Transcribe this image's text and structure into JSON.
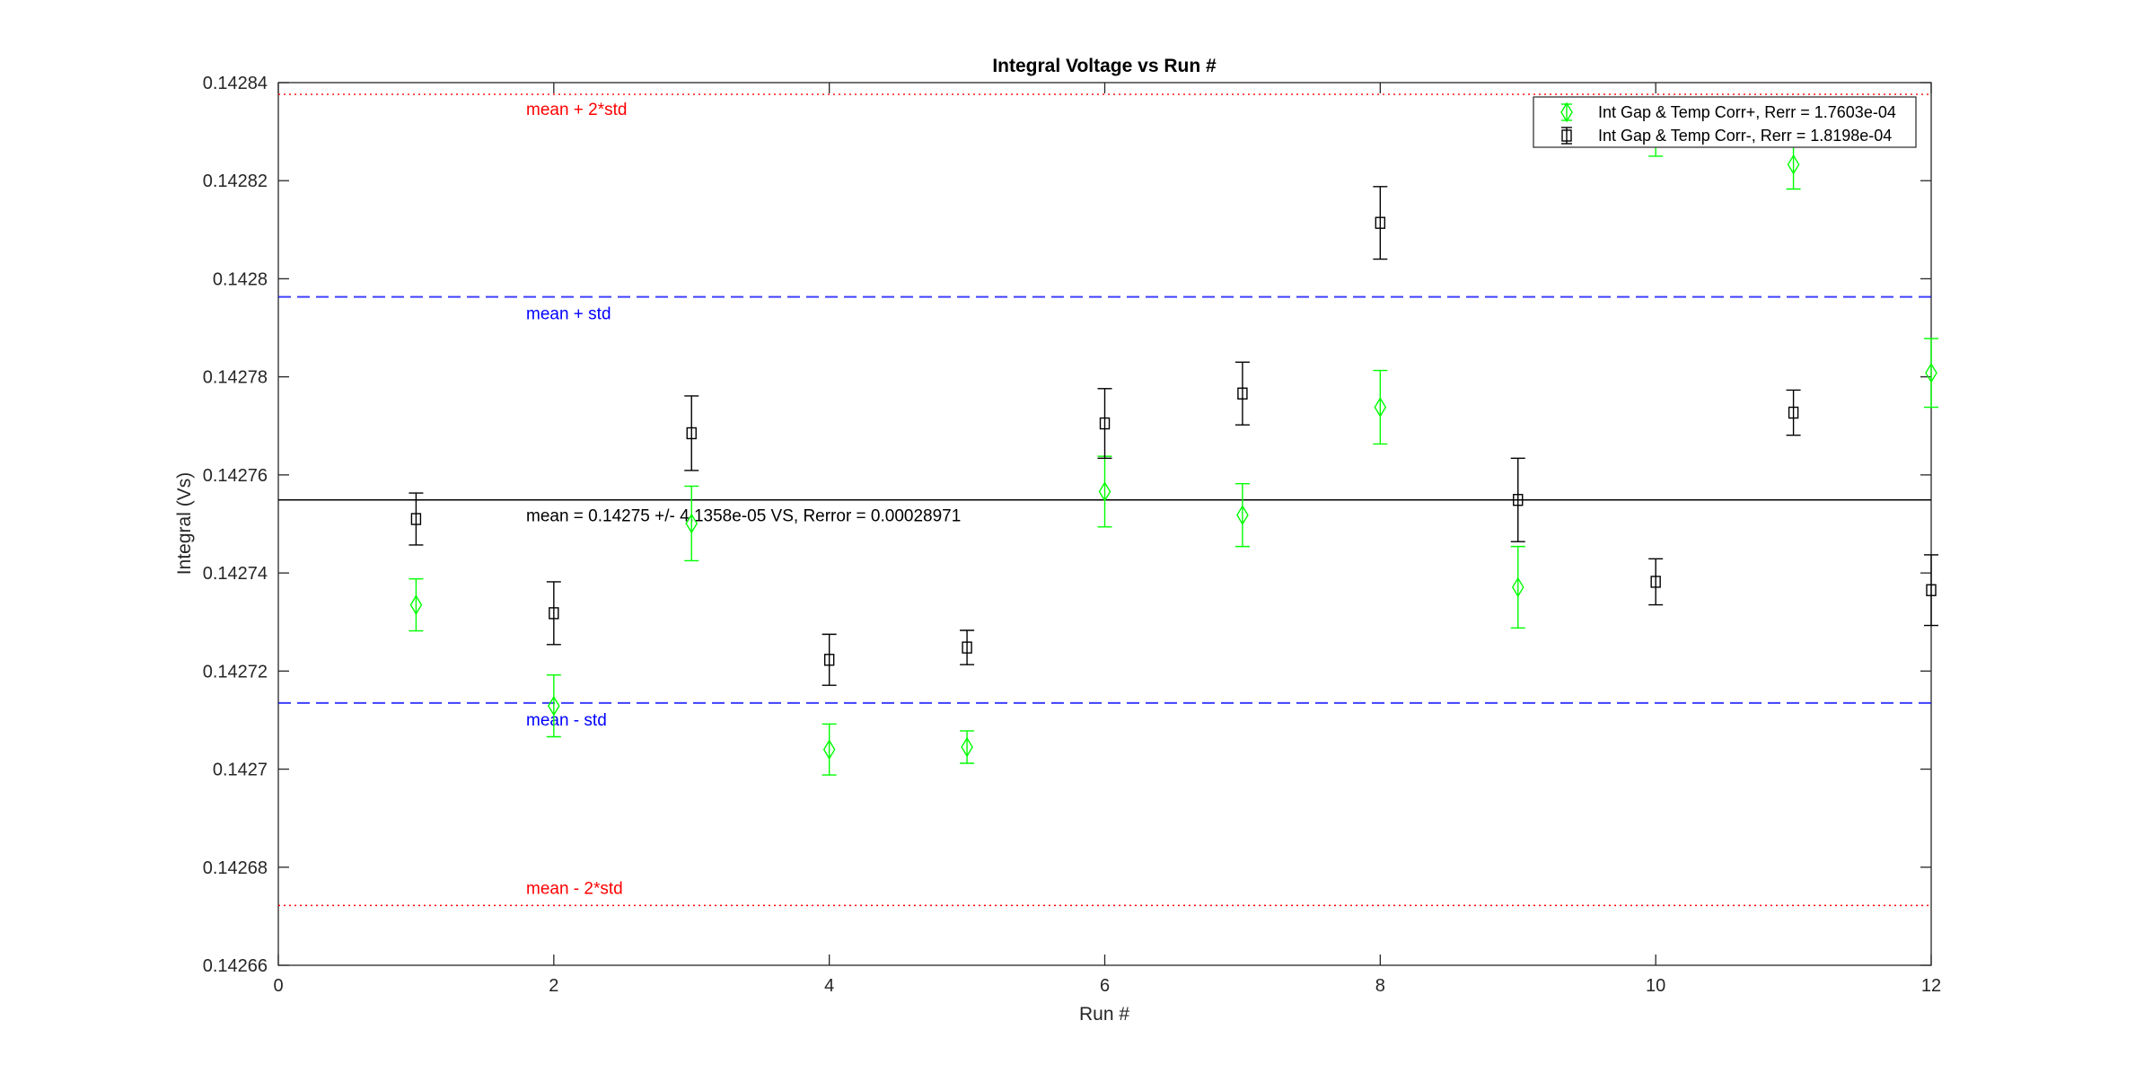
{
  "chart_data": {
    "type": "scatter",
    "title": "Integral Voltage vs Run #",
    "xlabel": "Run #",
    "ylabel": "Integral (Vs)",
    "xlim": [
      0,
      12
    ],
    "ylim": [
      0.14266,
      0.14284
    ],
    "xticks": [
      "0",
      "2",
      "4",
      "6",
      "8",
      "10",
      "12"
    ],
    "yticks": [
      "0.14266",
      "0.14268",
      "0.1427",
      "0.14272",
      "0.14274",
      "0.14276",
      "0.14278",
      "0.1428",
      "0.14282",
      "0.14284"
    ],
    "grid": false,
    "legend_position": "top-right",
    "x": [
      1,
      2,
      3,
      4,
      5,
      6,
      7,
      8,
      9,
      10,
      11,
      12
    ],
    "series": [
      {
        "name": "Int Gap & Temp Corr+, Rerr = 1.7603e-04",
        "marker": "diamond",
        "color": "#00ff00",
        "values": [
          0.1427335,
          0.1427129,
          0.1427501,
          0.142704,
          0.1427045,
          0.1427566,
          0.1427518,
          0.1427738,
          0.1427371,
          0.1428297,
          0.1428233,
          0.1427808
        ],
        "errors": [
          5.3e-06,
          6.3e-06,
          7.6e-06,
          5.2e-06,
          3.3e-06,
          7.2e-06,
          6.4e-06,
          7.5e-06,
          8.3e-06,
          4.7e-06,
          5e-06,
          7e-06
        ]
      },
      {
        "name": "Int Gap & Temp Corr-, Rerr = 1.8198e-04",
        "marker": "square",
        "color": "#000000",
        "values": [
          0.142751,
          0.1427318,
          0.1427685,
          0.1427223,
          0.1427248,
          0.1427705,
          0.1427766,
          0.1428114,
          0.1427549,
          0.1427382,
          0.1427727,
          0.1427365
        ],
        "errors": [
          5.3e-06,
          6.4e-06,
          7.6e-06,
          5.2e-06,
          3.5e-06,
          7.1e-06,
          6.4e-06,
          7.4e-06,
          8.5e-06,
          4.7e-06,
          4.6e-06,
          7.2e-06
        ]
      }
    ],
    "reference_lines": [
      {
        "label": "mean = 0.14275 +/- 4.1358e-05 VS, Rerror = 0.00028971",
        "value": 0.1427549,
        "color": "#000000",
        "style": "solid"
      },
      {
        "label": "mean + std",
        "value": 0.1427963,
        "color": "#0000ff",
        "style": "dashed"
      },
      {
        "label": "mean - std",
        "value": 0.1427135,
        "color": "#0000ff",
        "style": "dashed"
      },
      {
        "label": "mean + 2*std",
        "value": 0.1428376,
        "color": "#ff0000",
        "style": "dotted"
      },
      {
        "label": "mean - 2*std",
        "value": 0.1426722,
        "color": "#ff0000",
        "style": "dotted"
      }
    ]
  }
}
